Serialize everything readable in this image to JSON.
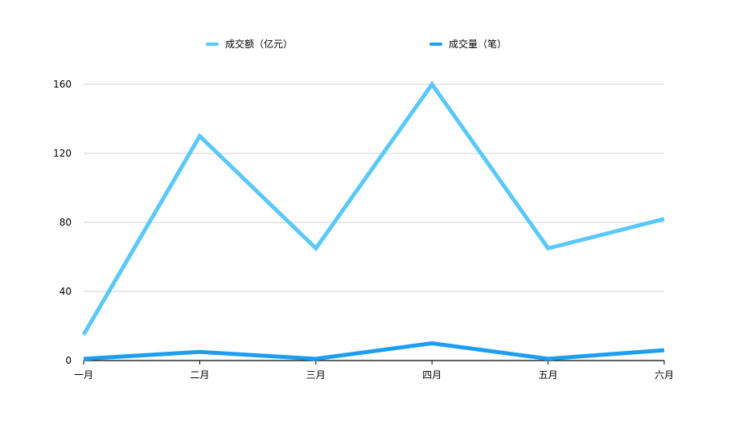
{
  "chart_data": {
    "type": "line",
    "title": "",
    "xlabel": "",
    "ylabel": "",
    "categories": [
      "一月",
      "二月",
      "三月",
      "四月",
      "五月",
      "六月"
    ],
    "series": [
      {
        "name": "成交额（亿元）",
        "color": "#5ac8fa",
        "values": [
          15,
          130,
          65,
          160,
          65,
          82
        ]
      },
      {
        "name": "成交量（笔）",
        "color": "#1e9ef0",
        "values": [
          1,
          5,
          1,
          10,
          1,
          6
        ]
      }
    ],
    "ylim": [
      0,
      160
    ],
    "yticks": [
      0,
      40,
      80,
      120,
      160
    ],
    "grid": true,
    "legend_position": "top-center"
  }
}
